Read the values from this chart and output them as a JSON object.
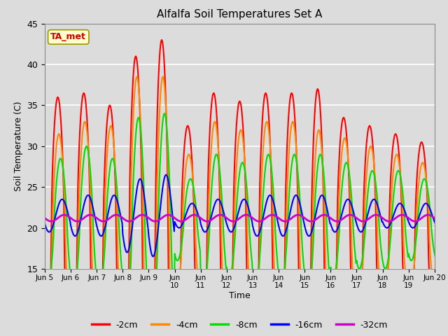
{
  "title": "Alfalfa Soil Temperatures Set A",
  "xlabel": "Time",
  "ylabel": "Soil Temperature (C)",
  "ylim": [
    15,
    45
  ],
  "yticks": [
    15,
    20,
    25,
    30,
    35,
    40,
    45
  ],
  "bg_color": "#dcdcdc",
  "annotation_text": "TA_met",
  "annotation_color": "#cc0000",
  "annotation_bg": "#ffffcc",
  "legend_labels": [
    "-2cm",
    "-4cm",
    "-8cm",
    "-16cm",
    "-32cm"
  ],
  "line_colors": [
    "#ff0000",
    "#ff8800",
    "#00dd00",
    "#0000ff",
    "#cc00cc"
  ],
  "line_widths": [
    1.5,
    1.5,
    1.5,
    1.5,
    2.0
  ],
  "xtick_labels": [
    "Jun 5",
    "Jun 6",
    "Jun 7",
    "Jun 8",
    "Jun 9",
    "Jun\n10",
    "Jun\n11",
    "Jun\n12",
    "Jun\n13",
    "Jun\n14",
    "Jun\n15",
    "Jun\n16",
    "Jun\n17",
    "Jun\n18",
    "Jun\n19",
    "Jun 20"
  ],
  "n_days": 16,
  "pts_per_day": 48,
  "day_amps_2cm": [
    17,
    17,
    16,
    22,
    25,
    13,
    17,
    16,
    17,
    17,
    20,
    14,
    13,
    12,
    11,
    9
  ],
  "day_bases_2cm": [
    19,
    19.5,
    19,
    19,
    18,
    19.5,
    19.5,
    19.5,
    19.5,
    19.5,
    17,
    19.5,
    19.5,
    19.5,
    19.5,
    19.5
  ],
  "day_amps_4cm": [
    12,
    13,
    13,
    19,
    20,
    9,
    13,
    12,
    13,
    13,
    14,
    11,
    10,
    9,
    8,
    7
  ],
  "day_bases_4cm": [
    19.5,
    20,
    19.5,
    19.5,
    18.5,
    20,
    20,
    20,
    20,
    20,
    18,
    20,
    20,
    20,
    20,
    20
  ],
  "day_amps_8cm": [
    8,
    9,
    8,
    13,
    14,
    5,
    8,
    7,
    8,
    8,
    9,
    7,
    6,
    6,
    5,
    5
  ],
  "day_bases_8cm": [
    20.5,
    21,
    20.5,
    20.5,
    20,
    21,
    21,
    21,
    21,
    21,
    20,
    21,
    21,
    21,
    21,
    21
  ],
  "day_amps_16cm": [
    2.0,
    2.5,
    2.5,
    4.5,
    5.0,
    1.5,
    2.0,
    2.0,
    2.5,
    2.5,
    2.5,
    2.0,
    2.0,
    1.5,
    1.5,
    1.5
  ],
  "day_bases_16cm": [
    21.5,
    21.5,
    21.5,
    21.5,
    21.5,
    21.5,
    21.5,
    21.5,
    21.5,
    21.5,
    21.5,
    21.5,
    21.5,
    21.5,
    21.5,
    21.5
  ],
  "base_32cm": 21.2,
  "amp_32cm": 0.4,
  "phase_2cm": 6.0,
  "phase_4cm": 7.0,
  "phase_8cm": 8.5,
  "phase_16cm": 10.0,
  "phase_32cm": 12.0
}
